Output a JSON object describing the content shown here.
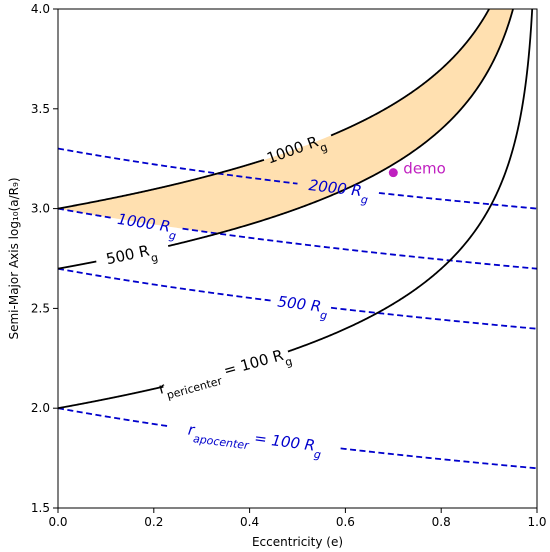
{
  "chart_data": {
    "type": "line",
    "title": "",
    "xlabel": "Eccentricity (e)",
    "ylabel": "Semi-Major Axis log₁₀(a/R₉)",
    "xlim": [
      0.0,
      1.0
    ],
    "ylim": [
      1.5,
      4.0
    ],
    "xticks": [
      "0.0",
      "0.2",
      "0.4",
      "0.6",
      "0.8",
      "1.0"
    ],
    "yticks": [
      "1.5",
      "2.0",
      "2.5",
      "3.0",
      "3.5",
      "4.0"
    ],
    "grid": false,
    "colors": {
      "pericenter": "#000000",
      "apocenter": "#0000cc",
      "shaded_region": "#ffe0b0",
      "annotation": "#c020c0"
    },
    "pericenter_curves": [
      {
        "r_g": 100,
        "label": "r_pericenter = 100 R_g"
      },
      {
        "r_g": 500,
        "label": "500 R_g"
      },
      {
        "r_g": 1000,
        "label": "1000 R_g"
      }
    ],
    "apocenter_curves": [
      {
        "r_g": 100,
        "label": "r_apocenter = 100 R_g"
      },
      {
        "r_g": 500,
        "label": "500 R_g"
      },
      {
        "r_g": 1000,
        "label": "1000 R_g"
      },
      {
        "r_g": 2000,
        "label": "2000 R_g"
      }
    ],
    "shaded_region": {
      "between_pericenter": [
        500,
        1000
      ],
      "above_apocenter": 1000
    },
    "points": [
      {
        "x": 0.7,
        "y": 3.18,
        "label": "demo"
      }
    ]
  }
}
